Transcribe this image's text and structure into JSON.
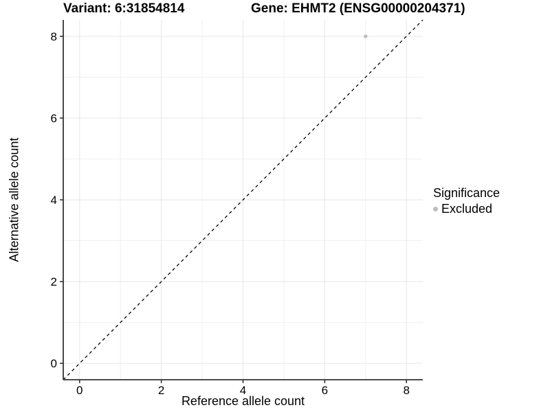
{
  "figure": {
    "title_left": "Variant: 6:31854814",
    "title_right": "Gene: EHMT2 (ENSG00000204371)"
  },
  "chart_data": {
    "type": "scatter",
    "title": "Variant: 6:31854814    Gene: EHMT2 (ENSG00000204371)",
    "xlabel": "Reference allele count",
    "ylabel": "Alternative allele count",
    "xlim": [
      -0.4,
      8.4
    ],
    "ylim": [
      -0.4,
      8.4
    ],
    "x_ticks": [
      0,
      2,
      4,
      6,
      8
    ],
    "y_ticks": [
      0,
      2,
      4,
      6,
      8
    ],
    "x_minor_ticks": [
      1,
      3,
      5,
      7
    ],
    "y_minor_ticks": [
      1,
      3,
      5,
      7
    ],
    "grid": "major+minor",
    "reference_line": {
      "kind": "identity y=x",
      "style": "dashed",
      "color": "#000000"
    },
    "series": [
      {
        "name": "Excluded",
        "color": "#bebebe",
        "marker_radius": 2.7,
        "points": [
          {
            "x": 7,
            "y": 8
          }
        ]
      }
    ],
    "legend": {
      "title": "Significance",
      "position": "right",
      "items": [
        {
          "label": "Excluded",
          "color": "#bebebe"
        }
      ]
    },
    "style": {
      "grid_major": "#e6e6e6",
      "grid_minor": "#f0f0f0",
      "axis": "#333333",
      "tick_text": "#000000",
      "background": "#ffffff"
    }
  }
}
